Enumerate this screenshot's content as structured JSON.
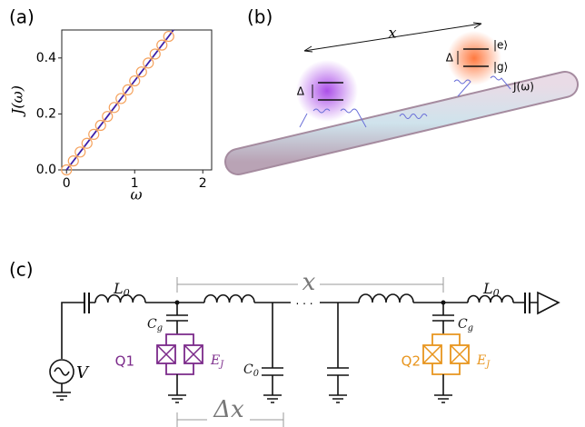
{
  "chart_data": {
    "type": "line",
    "label": "(a)",
    "x_label": "ω",
    "y_label": "J(ω)",
    "xlim": [
      -0.07,
      2.13
    ],
    "ylim": [
      0,
      0.5
    ],
    "xticks": [
      0,
      1,
      2
    ],
    "yticks": [
      {
        "value": 0,
        "label": "0.0"
      },
      {
        "value": 0.2,
        "label": "0.2"
      },
      {
        "value": 0.4,
        "label": "0.4"
      }
    ],
    "series": [
      {
        "marker": "line",
        "color": "#3b1fa8",
        "x": [
          0,
          1.57
        ],
        "values": [
          0,
          0.5
        ]
      },
      {
        "marker": "circle",
        "color": "#f5a25d",
        "x": [
          0,
          0.1,
          0.2,
          0.3,
          0.4,
          0.5,
          0.6,
          0.7,
          0.8,
          0.9,
          1.0,
          1.1,
          1.2,
          1.3,
          1.4,
          1.5
        ],
        "values": [
          0,
          0.032,
          0.064,
          0.095,
          0.127,
          0.159,
          0.191,
          0.223,
          0.255,
          0.286,
          0.318,
          0.35,
          0.382,
          0.414,
          0.446,
          0.477
        ]
      }
    ]
  },
  "panel_b": {
    "label": "(b)",
    "distance": "x",
    "detuning": [
      "Δ",
      "Δ"
    ],
    "excited": "|e⟩",
    "ground": "|g⟩",
    "coupling": "J(ω)"
  },
  "panel_c": {
    "label": "(c)",
    "inductors": [
      {
        "main": "L",
        "sub": "0"
      },
      {
        "main": "L",
        "sub": "0"
      }
    ],
    "coupling_caps": [
      {
        "main": "C",
        "sub": "g"
      },
      {
        "main": "C",
        "sub": "g"
      }
    ],
    "shunt_cap": {
      "main": "C",
      "sub": "0"
    },
    "qubits": [
      "Q1",
      "Q2"
    ],
    "junction_energy": [
      {
        "main": "E",
        "sub": "J"
      },
      {
        "main": "E",
        "sub": "J"
      }
    ],
    "source": "V",
    "ellipsis": "· · ·",
    "spacing": "x",
    "cell": "Δx"
  }
}
